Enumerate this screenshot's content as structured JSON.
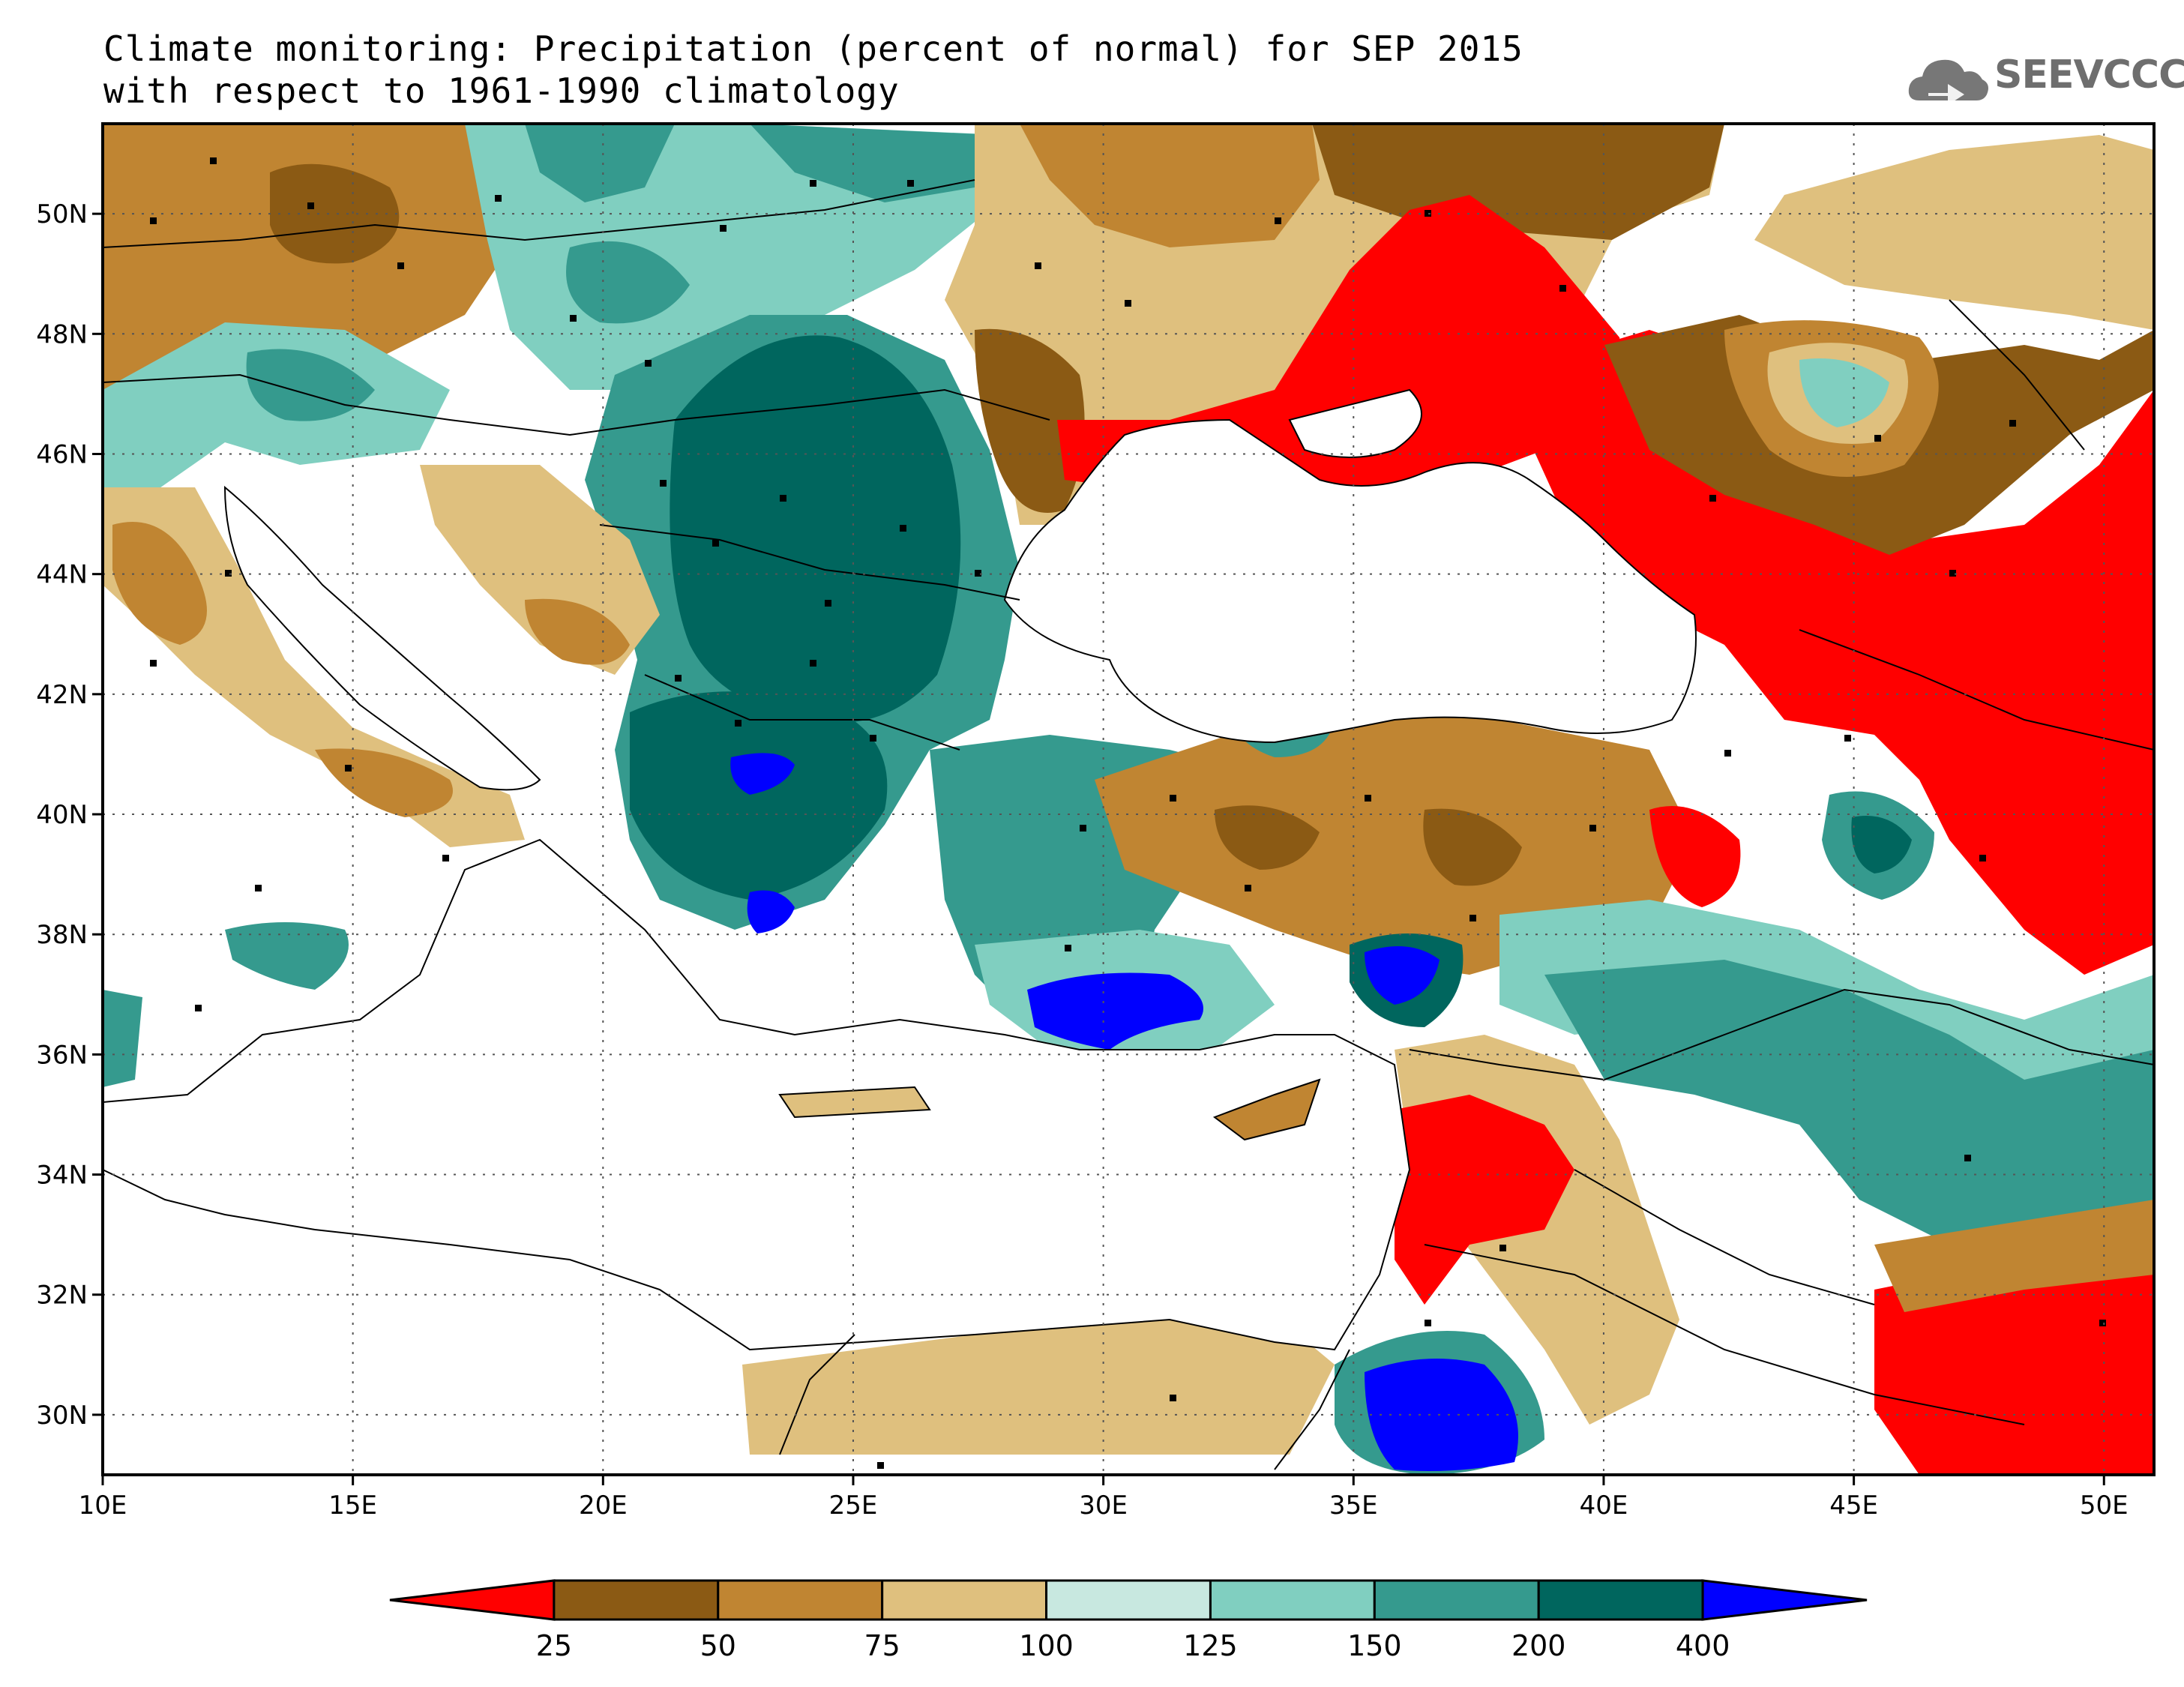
{
  "title": {
    "line1": "Climate monitoring: Precipitation (percent of normal) for SEP 2015",
    "line2": "with respect to 1961-1990 climatology"
  },
  "logo": {
    "text": "SEEVCCC",
    "icon": "cloud-icon",
    "color": "#6e6e6e"
  },
  "map": {
    "lon_range": [
      10,
      51
    ],
    "lat_range": [
      29,
      51.5
    ],
    "lon_ticks": [
      "10E",
      "15E",
      "20E",
      "25E",
      "30E",
      "35E",
      "40E",
      "45E",
      "50E"
    ],
    "lat_ticks": [
      "30N",
      "32N",
      "34N",
      "36N",
      "38N",
      "40N",
      "42N",
      "44N",
      "46N",
      "48N",
      "50N"
    ],
    "gridlines": "dotted"
  },
  "colorbar": {
    "levels": [
      "25",
      "50",
      "75",
      "100",
      "125",
      "150",
      "200",
      "400"
    ],
    "colors": [
      "#ff0000",
      "#8b5a14",
      "#c08532",
      "#dfc07e",
      "#c8e8e0",
      "#80cfc0",
      "#359a8e",
      "#00665e",
      "#0000ff"
    ]
  }
}
